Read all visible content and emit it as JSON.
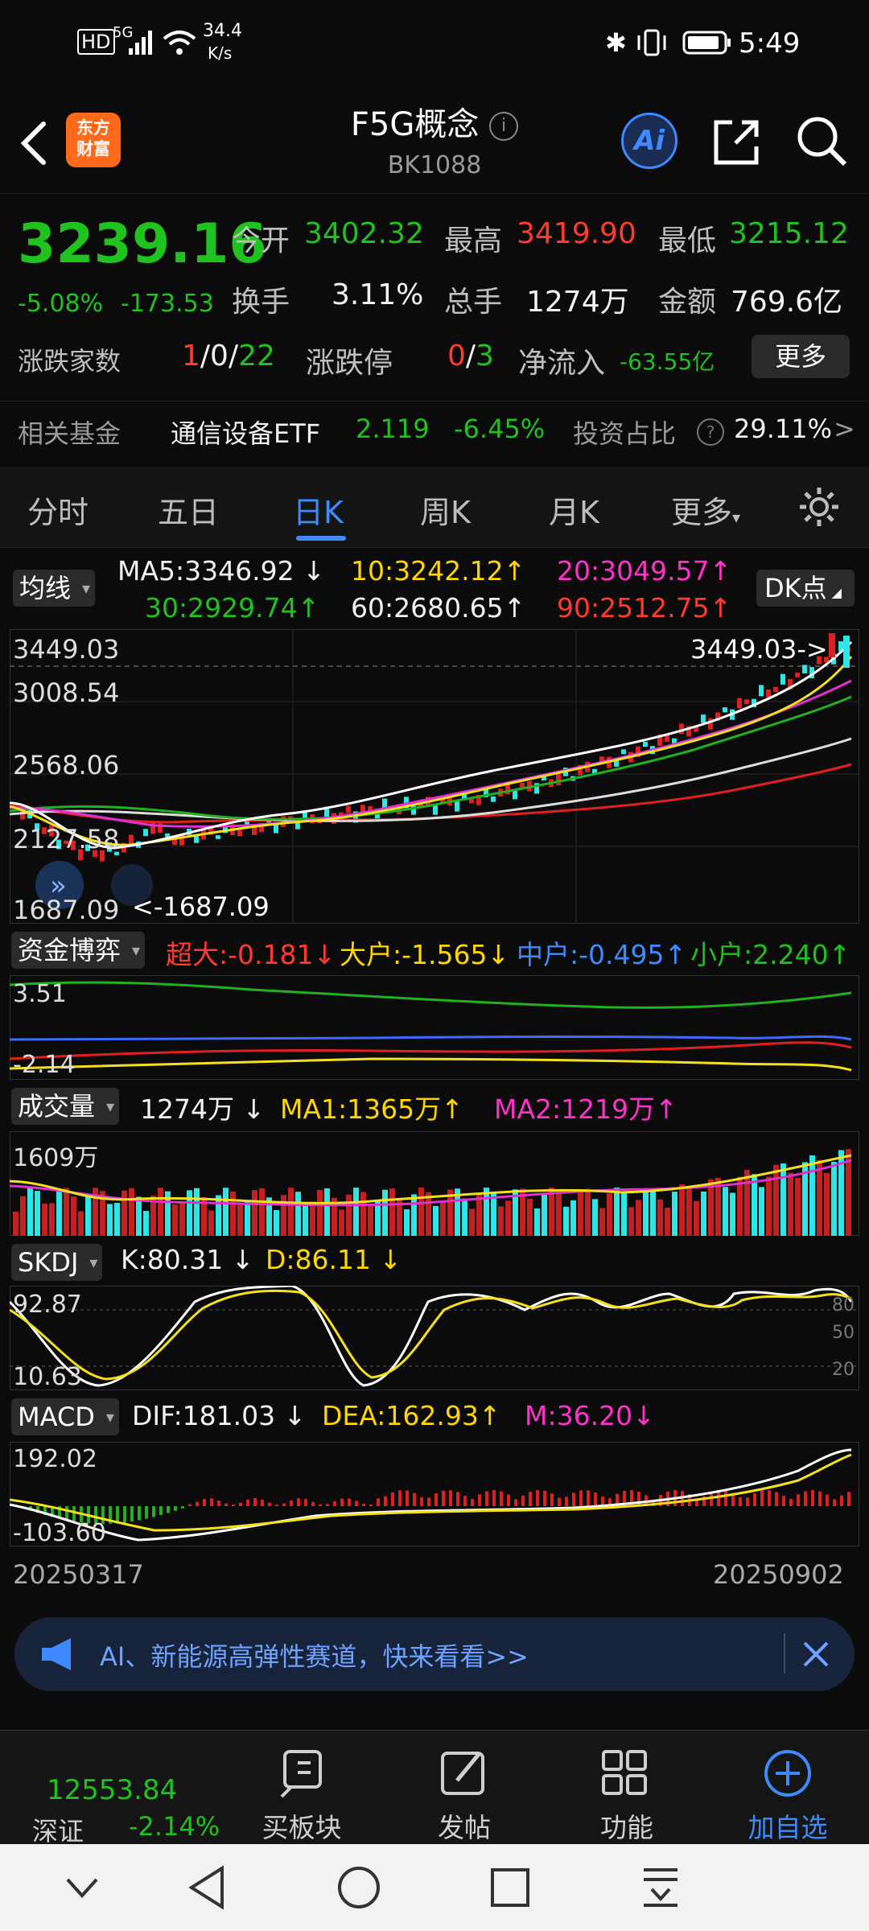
{
  "status_bar": {
    "network_speed": "34.4",
    "speed_unit": "K/s",
    "time": "5:49",
    "signal": "5G",
    "hd": "HD"
  },
  "header": {
    "logo_line1": "东方",
    "logo_line2": "财富",
    "title": "F5G概念",
    "code": "BK1088"
  },
  "quote": {
    "price": "3239.16",
    "change_pct": "-5.08%",
    "change_abs": "-173.53",
    "open_label": "今开",
    "open": "3402.32",
    "high_label": "最高",
    "high": "3419.90",
    "low_label": "最低",
    "low": "3215.12",
    "turnover_label": "换手",
    "turnover": "3.11%",
    "volume_label": "总手",
    "volume": "1274万",
    "amount_label": "金额",
    "amount": "769.6亿",
    "updown_label": "涨跌家数",
    "up_count": "1",
    "flat_count": "0",
    "down_count": "22",
    "limit_label": "涨跌停",
    "limit_up": "0",
    "limit_down": "3",
    "inflow_label": "净流入",
    "inflow": "-63.55亿",
    "more_label": "更多",
    "fund_label": "相关基金",
    "fund_name": "通信设备ETF",
    "fund_price": "2.119",
    "fund_pct": "-6.45%",
    "ratio_label": "投资占比",
    "ratio": "29.11%"
  },
  "tabs": [
    "分时",
    "五日",
    "日K",
    "周K",
    "月K",
    "更多"
  ],
  "ma": {
    "label": "均线",
    "ma5": "MA5:3346.92",
    "ma10": "10:3242.12",
    "ma20": "20:3049.57",
    "ma30": "30:2929.74",
    "ma60": "60:2680.65",
    "ma90": "90:2512.75",
    "dk": "DK点"
  },
  "kchart": {
    "y_top": "3449.03",
    "y_2": "3008.54",
    "y_3": "2568.06",
    "y_4": "2127.58",
    "y_bottom": "1687.09",
    "max_note": "3449.03->",
    "min_note": "<-1687.09"
  },
  "fund_flow": {
    "label": "资金博弈",
    "super": "超大:-0.181",
    "big": "大户:-1.565",
    "mid": "中户:-0.495",
    "small": "小户:2.240",
    "y_top": "3.51",
    "y_bottom": "-2.14"
  },
  "volume": {
    "label": "成交量",
    "value": "1274万",
    "ma1": "MA1:1365万",
    "ma2": "MA2:1219万",
    "y_top": "1609万"
  },
  "skdj": {
    "label": "SKDJ",
    "k": "K:80.31",
    "d": "D:86.11",
    "y_top": "92.87",
    "y_bottom": "10.63",
    "r80": "80",
    "r50": "50",
    "r20": "20"
  },
  "macd": {
    "label": "MACD",
    "dif": "DIF:181.03",
    "dea": "DEA:162.93",
    "m": "M:36.20",
    "y_top": "192.02",
    "y_bottom": "-103.60"
  },
  "dates": {
    "start": "20250317",
    "end": "20250902"
  },
  "promo": {
    "text": "AI、新能源高弹性赛道，快来看看>>"
  },
  "bottom": {
    "index_value": "12553.84",
    "index_name": "深证",
    "index_pct": "-2.14%",
    "b1": "买板块",
    "b2": "发帖",
    "b3": "功能",
    "b4": "加自选"
  }
}
